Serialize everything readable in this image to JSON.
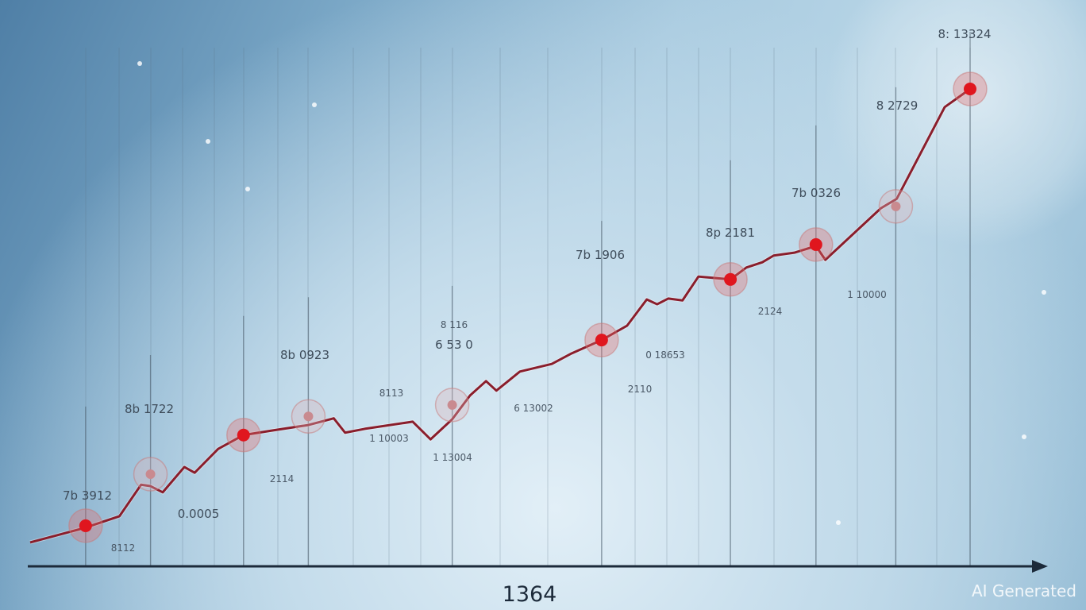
{
  "chart_data": {
    "type": "line",
    "title": "",
    "xlabel": "1364",
    "ylabel": "",
    "xlim": [
      0,
      100
    ],
    "ylim": [
      0,
      100
    ],
    "grid": "vertical lines",
    "colors": {
      "line": "#8a1e2c",
      "marker": "#e0161e",
      "axis": "#1c2a3a"
    },
    "series": [
      {
        "points": [
          [
            0,
            5.0
          ],
          [
            5.7,
            8.0
          ],
          [
            9.5,
            10.5
          ],
          [
            11.8,
            17.1
          ],
          [
            12.8,
            16.8
          ],
          [
            14.1,
            15.5
          ],
          [
            16.4,
            20.8
          ],
          [
            17.5,
            19.6
          ],
          [
            20.0,
            24.6
          ],
          [
            22.7,
            27.5
          ],
          [
            25.9,
            28.5
          ],
          [
            29.6,
            29.6
          ],
          [
            32.3,
            31.0
          ],
          [
            33.5,
            28.0
          ],
          [
            35.6,
            28.8
          ],
          [
            40.7,
            30.3
          ],
          [
            42.6,
            26.6
          ],
          [
            44.9,
            30.8
          ],
          [
            46.8,
            35.8
          ],
          [
            48.5,
            38.8
          ],
          [
            49.6,
            36.8
          ],
          [
            52.1,
            40.8
          ],
          [
            55.5,
            42.4
          ],
          [
            57.6,
            44.6
          ],
          [
            60.8,
            47.4
          ],
          [
            63.5,
            50.4
          ],
          [
            65.6,
            55.9
          ],
          [
            66.7,
            54.9
          ],
          [
            67.9,
            56.1
          ],
          [
            69.4,
            55.7
          ],
          [
            71.1,
            60.7
          ],
          [
            74.5,
            60.1
          ],
          [
            76.2,
            62.6
          ],
          [
            77.9,
            63.7
          ],
          [
            79.1,
            65.1
          ],
          [
            81.3,
            65.7
          ],
          [
            83.6,
            67.1
          ],
          [
            84.6,
            64.2
          ],
          [
            90.5,
            75.0
          ],
          [
            92.2,
            77.0
          ],
          [
            97.3,
            96.2
          ],
          [
            100,
            100
          ]
        ]
      }
    ],
    "markers": [
      {
        "x": 5.9,
        "y": 8.5,
        "strong": true
      },
      {
        "x": 12.8,
        "y": 19.3,
        "strong": false
      },
      {
        "x": 22.7,
        "y": 27.5,
        "strong": true
      },
      {
        "x": 29.6,
        "y": 31.4,
        "strong": false
      },
      {
        "x": 44.9,
        "y": 33.8,
        "strong": false
      },
      {
        "x": 60.8,
        "y": 47.4,
        "strong": true
      },
      {
        "x": 74.5,
        "y": 60.1,
        "strong": true
      },
      {
        "x": 83.6,
        "y": 67.4,
        "strong": true
      },
      {
        "x": 92.1,
        "y": 75.4,
        "strong": false
      },
      {
        "x": 100,
        "y": 100,
        "strong": true
      }
    ],
    "annotations": [
      "7b 3912",
      "8112",
      "8b 1722",
      "0.0005",
      "2114",
      "8b 0923",
      "8113",
      "1 10003",
      "8 116",
      "6 53 0",
      "1 13004",
      "6 13002",
      "7b 1906",
      "0 18653",
      "2110",
      "8p 2181",
      "2124",
      "7b 0326",
      "1 10000",
      "8 2729",
      "8: 13324"
    ]
  },
  "watermark": "AI Generated"
}
